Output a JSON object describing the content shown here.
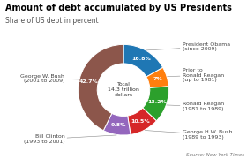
{
  "chart_data": {
    "type": "pie",
    "title": "Amount of debt accumulated by US Presidents",
    "subtitle": "Share of US debt in percent",
    "categories": [
      "President Obama\n(since 2009)",
      "Prior to\nRonald Reagan\n(up to 1981)",
      "Ronald Reagan\n(1981 to 1989)",
      "George H.W. Bush\n(1989 to 1993)",
      "Bill Clinton\n(1993 to 2001)",
      "George W. Bush\n(2001 to 2009)"
    ],
    "values": [
      16.8,
      7.0,
      13.2,
      10.5,
      9.8,
      42.7
    ],
    "data_labels": true,
    "value_labels": [
      "16.8%",
      "7%",
      "13.2%",
      "10.5%",
      "9.8%",
      "42.7%"
    ],
    "center_text": "Total\n14.3 trillion\ndollars",
    "source": "Source: New York Times"
  }
}
